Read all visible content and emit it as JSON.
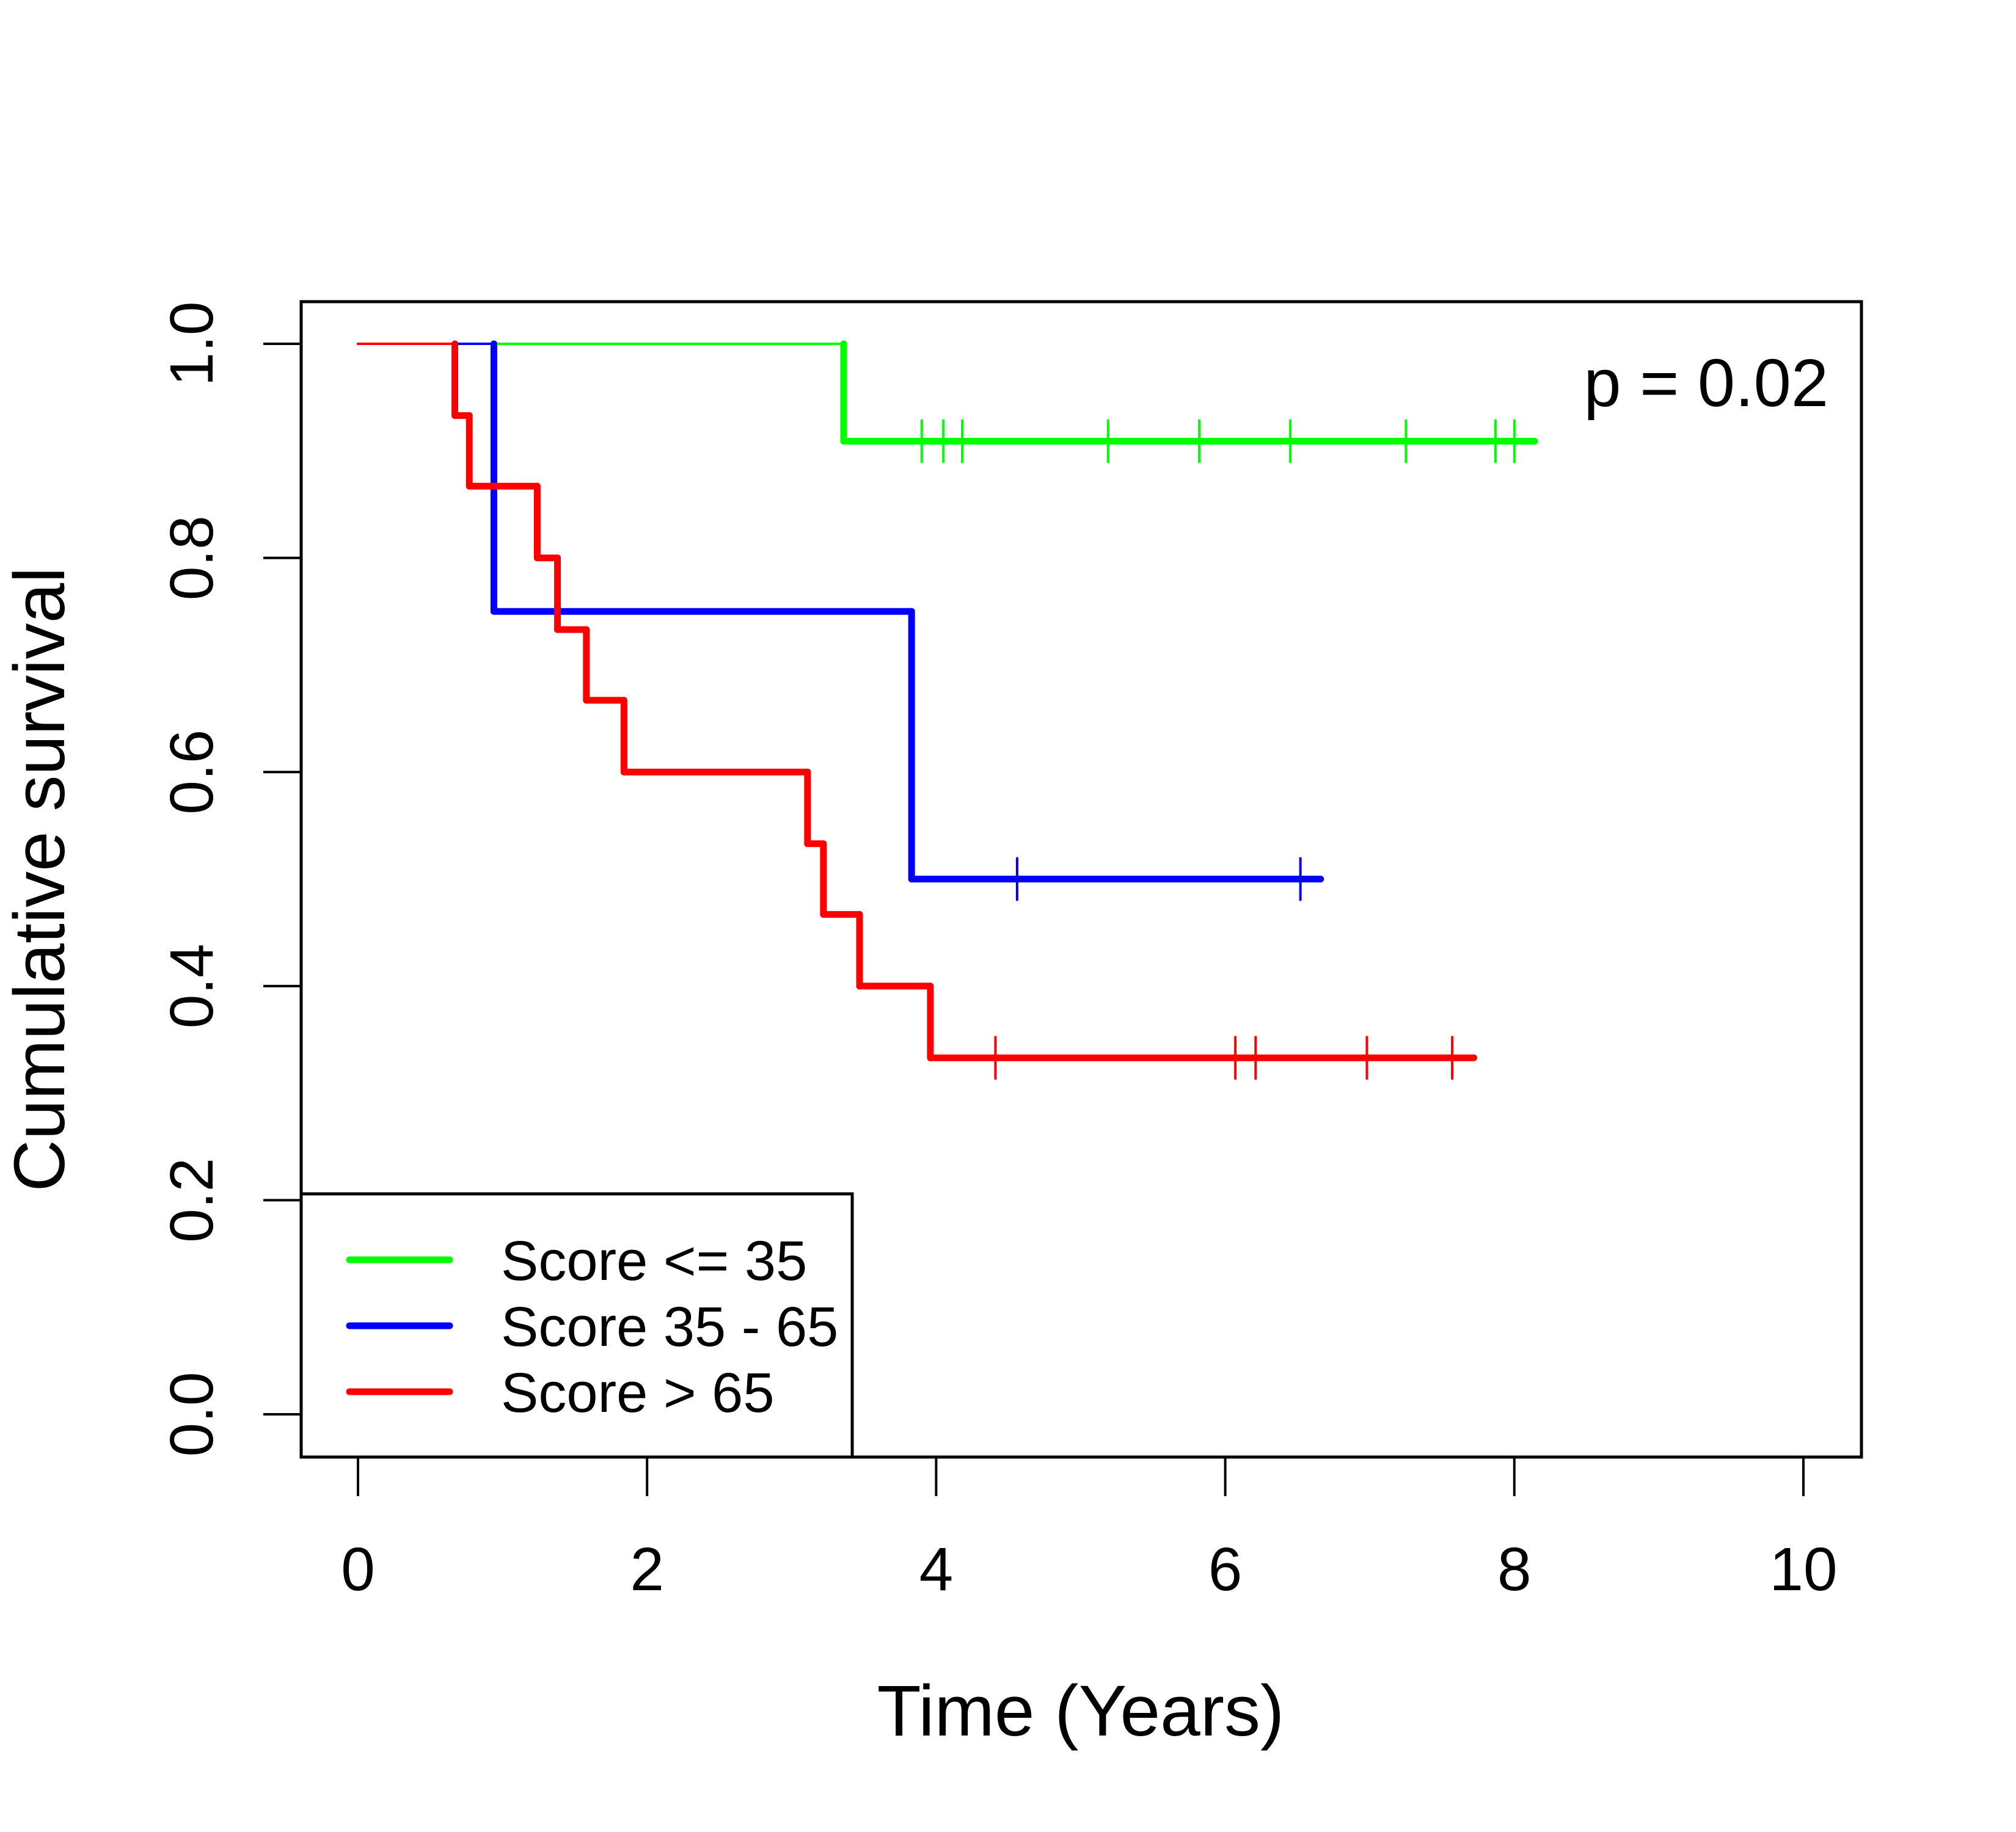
{
  "chart_data": {
    "type": "line",
    "subtype": "kaplan-meier",
    "title": "",
    "xlabel": "Time (Years)",
    "ylabel": "Cumulative survival",
    "xlim": [
      0,
      10
    ],
    "ylim": [
      0,
      1
    ],
    "xticks": [
      0,
      2,
      4,
      6,
      8,
      10
    ],
    "xtick_labels": [
      "0",
      "2",
      "4",
      "6",
      "8",
      "10"
    ],
    "yticks": [
      0,
      0.2,
      0.4,
      0.6,
      0.8,
      1.0
    ],
    "ytick_labels": [
      "0.0",
      "0.2",
      "0.4",
      "0.6",
      "0.8",
      "1.0"
    ],
    "grid": false,
    "annotation": "p = 0.02",
    "legend_position": "bottom-left",
    "series": [
      {
        "name": "Score <= 35",
        "color": "#00ff00",
        "steps": [
          [
            0,
            1.0
          ],
          [
            3.36,
            0.909
          ]
        ],
        "censor_times": [
          3.9,
          4.05,
          4.18,
          5.19,
          5.82,
          6.45,
          7.25,
          7.87,
          8.0
        ],
        "end_time": 8.14
      },
      {
        "name": "Score 35 - 65",
        "color": "#0000ff",
        "steps": [
          [
            0,
            1.0
          ],
          [
            0.94,
            0.75
          ],
          [
            3.83,
            0.5
          ]
        ],
        "censor_times": [
          4.56,
          6.52
        ],
        "end_time": 6.66
      },
      {
        "name": "Score > 65",
        "color": "#ff0000",
        "steps": [
          [
            0,
            1.0
          ],
          [
            0.67,
            0.933
          ],
          [
            0.77,
            0.867
          ],
          [
            1.24,
            0.8
          ],
          [
            1.38,
            0.733
          ],
          [
            1.58,
            0.667
          ],
          [
            1.84,
            0.6
          ],
          [
            3.11,
            0.533
          ],
          [
            3.22,
            0.467
          ],
          [
            3.47,
            0.4
          ],
          [
            3.96,
            0.333
          ]
        ],
        "censor_times": [
          4.41,
          6.07,
          6.21,
          6.98,
          7.57
        ],
        "end_time": 7.72
      }
    ]
  }
}
